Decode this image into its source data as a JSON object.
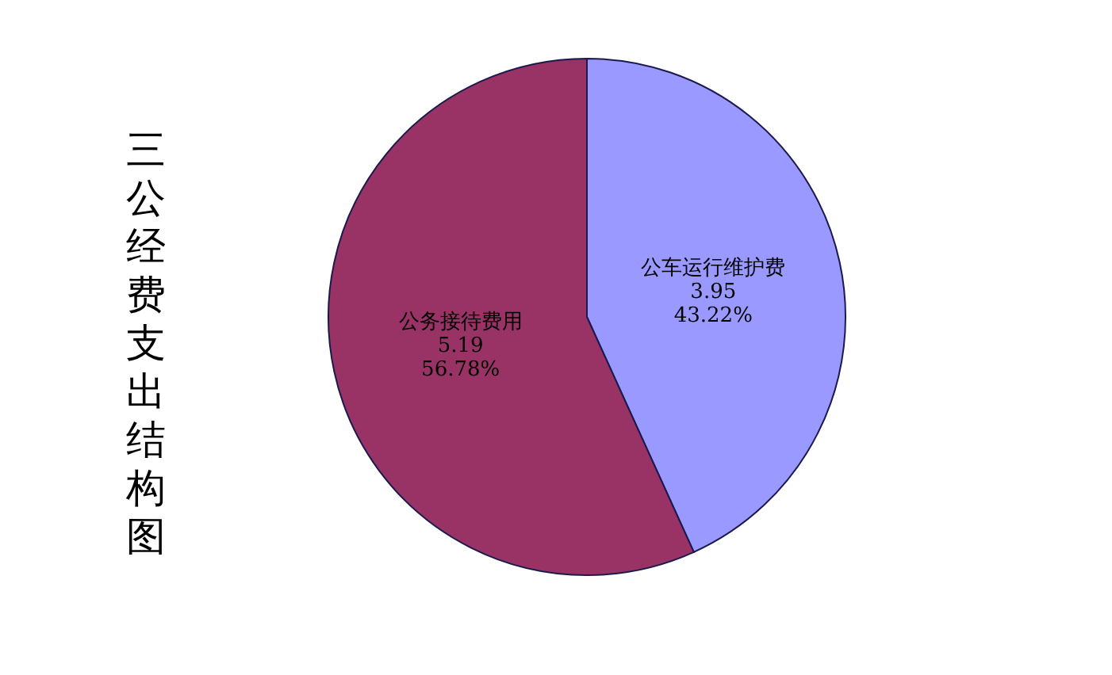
{
  "chart_data": {
    "type": "pie",
    "title": "三公经费支出结构图",
    "categories": [
      "公车运行维护费",
      "公务接待费用"
    ],
    "values": [
      3.95,
      5.19
    ],
    "colors": [
      "#9999ff",
      "#993366"
    ],
    "value_labels": [
      "3.95\n43.22%",
      "5.19\n56.78%"
    ]
  }
}
